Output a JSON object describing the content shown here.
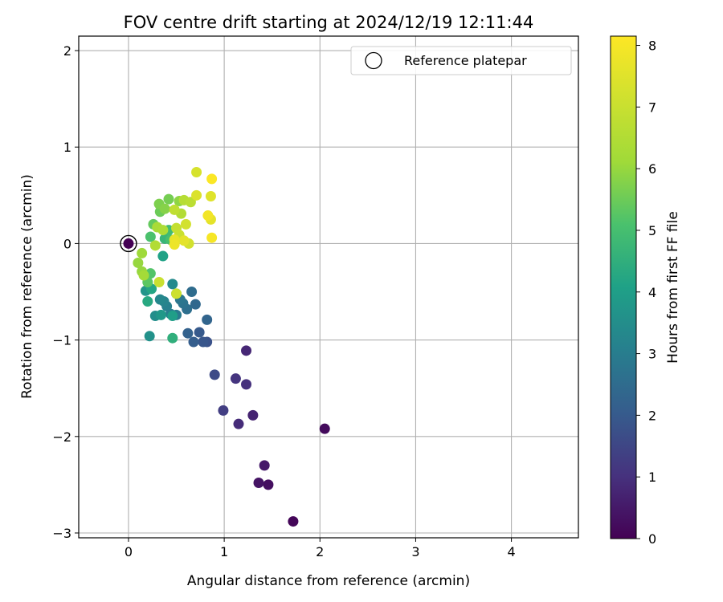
{
  "chart_data": {
    "type": "scatter",
    "title": "FOV centre drift starting at 2024/12/19 12:11:44",
    "xlabel": "Angular distance from reference (arcmin)",
    "ylabel": "Rotation from reference (arcmin)",
    "xlim": [
      -0.52,
      4.7
    ],
    "ylim": [
      -3.05,
      2.15
    ],
    "xticks": [
      "0",
      "1",
      "2",
      "3",
      "4"
    ],
    "yticks": [
      "−3",
      "−2",
      "−1",
      "0",
      "1",
      "2"
    ],
    "xtick_values": [
      0,
      1,
      2,
      3,
      4
    ],
    "ytick_values": [
      -3,
      -2,
      -1,
      0,
      1,
      2
    ],
    "grid": true,
    "legend": {
      "position": "top-right",
      "entries": [
        "Reference platepar"
      ]
    },
    "reference_point": {
      "x": 0,
      "y": 0
    },
    "colorbar": {
      "label": "Hours from first FF file",
      "colormap": "viridis",
      "range": [
        0,
        8.15
      ],
      "ticks": [
        "0",
        "1",
        "2",
        "3",
        "4",
        "5",
        "6",
        "7",
        "8"
      ],
      "tick_values": [
        0,
        1,
        2,
        3,
        4,
        5,
        6,
        7,
        8
      ]
    },
    "points": [
      {
        "x": 0.0,
        "y": 0.0,
        "c": 0.0
      },
      {
        "x": 1.72,
        "y": -2.88,
        "c": 0.1
      },
      {
        "x": 2.05,
        "y": -1.92,
        "c": 0.2
      },
      {
        "x": 1.46,
        "y": -2.5,
        "c": 0.3
      },
      {
        "x": 1.36,
        "y": -2.48,
        "c": 0.4
      },
      {
        "x": 1.42,
        "y": -2.3,
        "c": 0.5
      },
      {
        "x": 1.3,
        "y": -1.78,
        "c": 0.7
      },
      {
        "x": 1.23,
        "y": -1.11,
        "c": 0.8
      },
      {
        "x": 1.15,
        "y": -1.87,
        "c": 0.9
      },
      {
        "x": 1.23,
        "y": -1.46,
        "c": 1.0
      },
      {
        "x": 1.12,
        "y": -1.4,
        "c": 1.1
      },
      {
        "x": 0.99,
        "y": -1.73,
        "c": 1.3
      },
      {
        "x": 0.9,
        "y": -1.36,
        "c": 1.6
      },
      {
        "x": 0.82,
        "y": -1.02,
        "c": 1.8
      },
      {
        "x": 0.78,
        "y": -1.02,
        "c": 1.9
      },
      {
        "x": 0.74,
        "y": -0.92,
        "c": 2.0
      },
      {
        "x": 0.68,
        "y": -1.02,
        "c": 2.1
      },
      {
        "x": 0.62,
        "y": -0.93,
        "c": 2.2
      },
      {
        "x": 0.82,
        "y": -0.79,
        "c": 2.3
      },
      {
        "x": 0.7,
        "y": -0.63,
        "c": 2.4
      },
      {
        "x": 0.66,
        "y": -0.5,
        "c": 2.5
      },
      {
        "x": 0.61,
        "y": -0.68,
        "c": 2.6
      },
      {
        "x": 0.57,
        "y": -0.62,
        "c": 2.7
      },
      {
        "x": 0.54,
        "y": -0.58,
        "c": 2.8
      },
      {
        "x": 0.5,
        "y": -0.74,
        "c": 2.9
      },
      {
        "x": 0.44,
        "y": -0.73,
        "c": 3.0
      },
      {
        "x": 0.4,
        "y": -0.65,
        "c": 3.1
      },
      {
        "x": 0.37,
        "y": -0.6,
        "c": 3.2
      },
      {
        "x": 0.33,
        "y": -0.58,
        "c": 3.3
      },
      {
        "x": 0.46,
        "y": -0.42,
        "c": 3.4
      },
      {
        "x": 0.28,
        "y": -0.75,
        "c": 3.5
      },
      {
        "x": 0.22,
        "y": -0.96,
        "c": 3.6
      },
      {
        "x": 0.18,
        "y": -0.49,
        "c": 3.7
      },
      {
        "x": 0.34,
        "y": -0.74,
        "c": 3.8
      },
      {
        "x": 0.46,
        "y": -0.75,
        "c": 4.0
      },
      {
        "x": 0.36,
        "y": -0.13,
        "c": 4.1
      },
      {
        "x": 0.24,
        "y": -0.47,
        "c": 4.2
      },
      {
        "x": 0.2,
        "y": -0.6,
        "c": 4.3
      },
      {
        "x": 0.46,
        "y": -0.98,
        "c": 4.5
      },
      {
        "x": 0.5,
        "y": -0.52,
        "c": 4.6
      },
      {
        "x": 0.38,
        "y": 0.05,
        "c": 4.7
      },
      {
        "x": 0.42,
        "y": 0.14,
        "c": 4.9
      },
      {
        "x": 0.44,
        "y": 0.04,
        "c": 5.0
      },
      {
        "x": 0.23,
        "y": 0.07,
        "c": 5.1
      },
      {
        "x": 0.23,
        "y": -0.31,
        "c": 5.2
      },
      {
        "x": 0.2,
        "y": -0.4,
        "c": 5.3
      },
      {
        "x": 0.26,
        "y": 0.2,
        "c": 5.4
      },
      {
        "x": 0.33,
        "y": 0.33,
        "c": 5.5
      },
      {
        "x": 0.42,
        "y": 0.46,
        "c": 5.6
      },
      {
        "x": 0.32,
        "y": 0.41,
        "c": 5.7
      },
      {
        "x": 0.38,
        "y": 0.36,
        "c": 5.8
      },
      {
        "x": 0.53,
        "y": 0.44,
        "c": 5.9
      },
      {
        "x": 0.14,
        "y": -0.29,
        "c": 6.0
      },
      {
        "x": 0.1,
        "y": -0.2,
        "c": 6.0
      },
      {
        "x": 0.14,
        "y": -0.1,
        "c": 6.1
      },
      {
        "x": 0.16,
        "y": -0.33,
        "c": 6.2
      },
      {
        "x": 0.3,
        "y": 0.17,
        "c": 6.3
      },
      {
        "x": 0.36,
        "y": 0.14,
        "c": 6.4
      },
      {
        "x": 0.28,
        "y": -0.02,
        "c": 6.5
      },
      {
        "x": 0.55,
        "y": 0.31,
        "c": 6.5
      },
      {
        "x": 0.58,
        "y": 0.45,
        "c": 6.6
      },
      {
        "x": 0.65,
        "y": 0.43,
        "c": 6.7
      },
      {
        "x": 0.48,
        "y": 0.35,
        "c": 6.8
      },
      {
        "x": 0.5,
        "y": 0.16,
        "c": 6.9
      },
      {
        "x": 0.53,
        "y": 0.09,
        "c": 7.0
      },
      {
        "x": 0.32,
        "y": -0.4,
        "c": 7.0
      },
      {
        "x": 0.5,
        "y": -0.52,
        "c": 7.1
      },
      {
        "x": 0.6,
        "y": 0.2,
        "c": 7.2
      },
      {
        "x": 0.63,
        "y": 0.0,
        "c": 7.2
      },
      {
        "x": 0.71,
        "y": 0.74,
        "c": 7.3
      },
      {
        "x": 0.71,
        "y": 0.5,
        "c": 7.4
      },
      {
        "x": 0.86,
        "y": 0.49,
        "c": 7.5
      },
      {
        "x": 0.86,
        "y": 0.25,
        "c": 7.6
      },
      {
        "x": 0.58,
        "y": 0.03,
        "c": 7.6
      },
      {
        "x": 0.48,
        "y": 0.04,
        "c": 7.7
      },
      {
        "x": 0.48,
        "y": -0.01,
        "c": 7.8
      },
      {
        "x": 0.83,
        "y": 0.29,
        "c": 7.9
      },
      {
        "x": 0.87,
        "y": 0.06,
        "c": 8.0
      },
      {
        "x": 0.87,
        "y": 0.67,
        "c": 8.1
      }
    ]
  }
}
